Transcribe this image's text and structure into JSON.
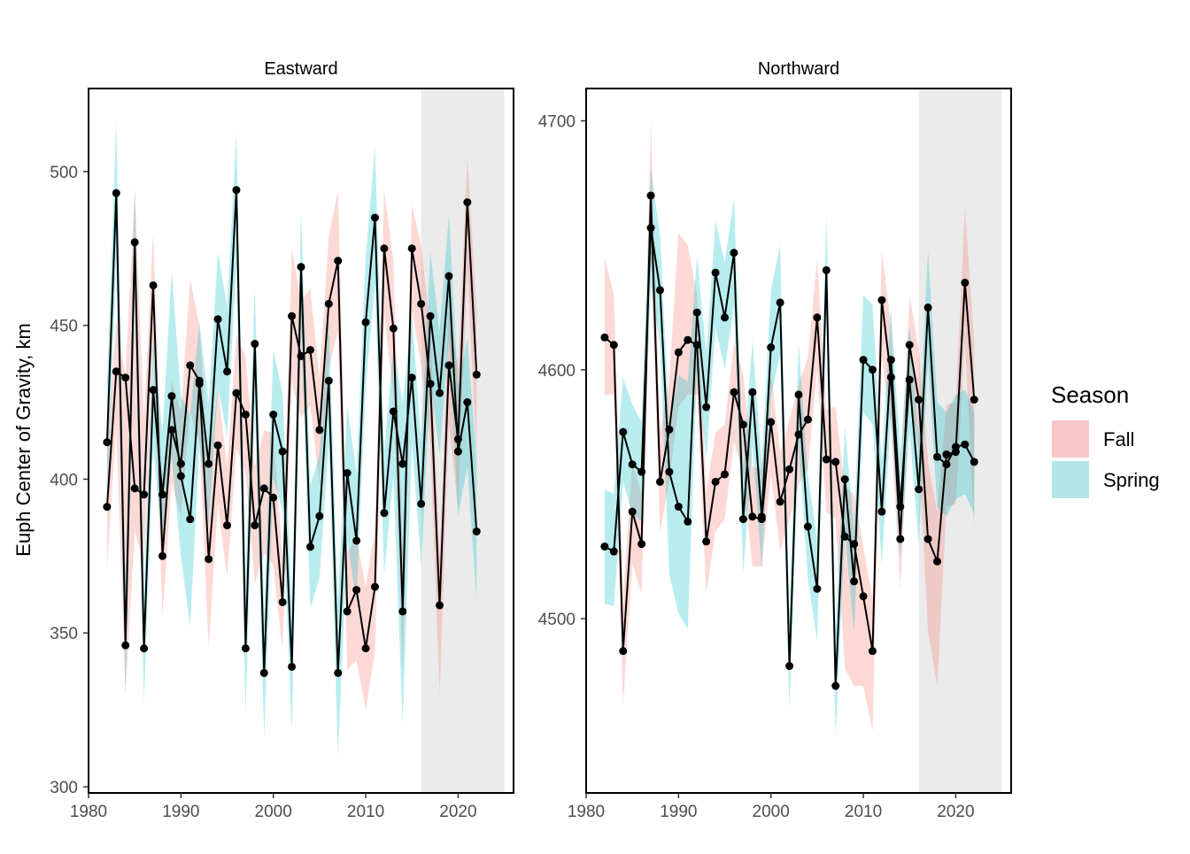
{
  "y_axis_label": "Euph Center of Gravity, km",
  "legend": {
    "title": "Season",
    "position": "right",
    "entries": [
      {
        "label": "Fall",
        "color": "#F8C7C7"
      },
      {
        "label": "Spring",
        "color": "#B4E4E6"
      }
    ]
  },
  "colors": {
    "fall_ribbon": "#F8766D",
    "spring_ribbon": "#00BFC4",
    "line": "#000000",
    "highlight_band": "#EBEBEB"
  },
  "chart_data": [
    {
      "type": "line",
      "title": "Eastward",
      "xlabel": "",
      "ylabel": "Euph Center of Gravity, km",
      "xlim": [
        1980,
        2026
      ],
      "ylim": [
        298,
        527
      ],
      "x_ticks": [
        1980,
        1990,
        2000,
        2010,
        2020
      ],
      "y_ticks": [
        300,
        350,
        400,
        450,
        500
      ],
      "grid": false,
      "highlight_band": [
        2016,
        2025
      ],
      "series": [
        {
          "name": "Fall",
          "years": [
            1982,
            1983,
            1984,
            1985,
            1986,
            1987,
            1988,
            1989,
            1990,
            1991,
            1992,
            1993,
            1994,
            1995,
            1996,
            1997,
            1998,
            1999,
            2000,
            2001,
            2002,
            2003,
            2004,
            2005,
            2006,
            2007,
            2008,
            2009,
            2010,
            2011,
            2012,
            2013,
            2014,
            2015,
            2016,
            2017,
            2018,
            2019,
            2020,
            2021,
            2022
          ],
          "values": [
            391,
            435,
            433,
            397,
            395,
            463,
            375,
            416,
            405,
            437,
            432,
            374,
            411,
            385,
            428,
            421,
            385,
            397,
            394,
            360,
            453,
            440,
            442,
            416,
            457,
            471,
            357,
            364,
            345,
            365,
            475,
            449,
            357,
            475,
            457,
            431,
            359,
            437,
            413,
            490,
            434
          ],
          "lower": [
            371,
            417,
            330,
            383,
            372,
            443,
            355,
            399,
            388,
            422,
            412,
            345,
            392,
            368,
            410,
            402,
            366,
            376,
            372,
            344,
            431,
            420,
            424,
            398,
            436,
            448,
            338,
            341,
            325,
            344,
            454,
            427,
            337,
            455,
            437,
            411,
            330,
            418,
            390,
            468,
            407
          ],
          "upper": [
            410,
            452,
            434,
            494,
            420,
            481,
            392,
            432,
            422,
            465,
            450,
            404,
            430,
            404,
            447,
            440,
            404,
            416,
            415,
            374,
            475,
            458,
            462,
            433,
            479,
            494,
            376,
            381,
            365,
            384,
            494,
            471,
            377,
            489,
            476,
            448,
            375,
            456,
            436,
            505,
            455
          ]
        },
        {
          "name": "Spring",
          "years": [
            1982,
            1983,
            1984,
            1985,
            1986,
            1987,
            1988,
            1989,
            1990,
            1991,
            1992,
            1993,
            1994,
            1995,
            1996,
            1997,
            1998,
            1999,
            2000,
            2001,
            2002,
            2003,
            2004,
            2005,
            2006,
            2007,
            2008,
            2009,
            2010,
            2011,
            2012,
            2013,
            2014,
            2015,
            2016,
            2017,
            2018,
            2019,
            2020,
            2021,
            2022
          ],
          "values": [
            412,
            493,
            346,
            477,
            345,
            429,
            395,
            427,
            401,
            387,
            431,
            405,
            452,
            435,
            494,
            345,
            444,
            337,
            421,
            409,
            339,
            469,
            378,
            388,
            432,
            337,
            402,
            380,
            451,
            485,
            389,
            422,
            405,
            433,
            392,
            453,
            428,
            466,
            409,
            425,
            383
          ],
          "lower": [
            392,
            470,
            330,
            459,
            327,
            411,
            377,
            408,
            375,
            352,
            411,
            385,
            430,
            414,
            470,
            323,
            425,
            316,
            400,
            390,
            318,
            450,
            358,
            368,
            412,
            310,
            380,
            360,
            430,
            463,
            369,
            401,
            320,
            412,
            372,
            432,
            408,
            446,
            388,
            404,
            360
          ],
          "upper": [
            432,
            516,
            366,
            495,
            365,
            447,
            415,
            468,
            427,
            421,
            451,
            425,
            474,
            456,
            513,
            367,
            463,
            357,
            442,
            428,
            360,
            487,
            398,
            408,
            452,
            360,
            424,
            402,
            472,
            508,
            409,
            443,
            425,
            454,
            412,
            474,
            448,
            486,
            430,
            446,
            406
          ]
        }
      ]
    },
    {
      "type": "line",
      "title": "Northward",
      "xlabel": "",
      "ylabel": "",
      "xlim": [
        1980,
        2026
      ],
      "ylim": [
        4430,
        4713
      ],
      "x_ticks": [
        1980,
        1990,
        2000,
        2010,
        2020
      ],
      "y_ticks": [
        4500,
        4600,
        4700
      ],
      "grid": false,
      "highlight_band": [
        2016,
        2025
      ],
      "series": [
        {
          "name": "Fall",
          "years": [
            1982,
            1983,
            1984,
            1985,
            1986,
            1987,
            1988,
            1989,
            1990,
            1991,
            1992,
            1993,
            1994,
            1995,
            1996,
            1997,
            1998,
            1999,
            2000,
            2001,
            2002,
            2003,
            2004,
            2005,
            2006,
            2007,
            2008,
            2009,
            2010,
            2011,
            2012,
            2013,
            2014,
            2015,
            2016,
            2017,
            2018,
            2019,
            2020,
            2021,
            2022
          ],
          "values": [
            4613,
            4610,
            4487,
            4543,
            4530,
            4670,
            4555,
            4576,
            4607,
            4612,
            4610,
            4531,
            4555,
            4558,
            4591,
            4578,
            4541,
            4540,
            4579,
            4547,
            4560,
            4574,
            4580,
            4621,
            4564,
            4563,
            4533,
            4530,
            4509,
            4487,
            4628,
            4597,
            4532,
            4610,
            4588,
            4532,
            4523,
            4566,
            4567,
            4635,
            4588
          ],
          "lower": [
            4590,
            4590,
            4465,
            4522,
            4510,
            4645,
            4535,
            4555,
            4585,
            4590,
            4590,
            4510,
            4535,
            4540,
            4571,
            4558,
            4521,
            4521,
            4558,
            4527,
            4540,
            4554,
            4560,
            4600,
            4543,
            4540,
            4480,
            4473,
            4473,
            4455,
            4605,
            4576,
            4512,
            4589,
            4568,
            4495,
            4473,
            4545,
            4546,
            4612,
            4535
          ],
          "upper": [
            4645,
            4630,
            4508,
            4563,
            4550,
            4700,
            4575,
            4596,
            4655,
            4650,
            4630,
            4551,
            4575,
            4578,
            4611,
            4598,
            4561,
            4560,
            4599,
            4567,
            4580,
            4594,
            4605,
            4645,
            4584,
            4585,
            4553,
            4550,
            4529,
            4508,
            4648,
            4618,
            4552,
            4630,
            4608,
            4563,
            4543,
            4586,
            4587,
            4665,
            4611
          ]
        },
        {
          "name": "Spring",
          "years": [
            1982,
            1983,
            1984,
            1985,
            1986,
            1987,
            1988,
            1989,
            1990,
            1991,
            1992,
            1993,
            1994,
            1995,
            1996,
            1997,
            1998,
            1999,
            2000,
            2001,
            2002,
            2003,
            2004,
            2005,
            2006,
            2007,
            2008,
            2009,
            2010,
            2011,
            2012,
            2013,
            2014,
            2015,
            2016,
            2017,
            2018,
            2019,
            2020,
            2021,
            2022
          ],
          "values": [
            4529,
            4527,
            4575,
            4562,
            4559,
            4657,
            4632,
            4559,
            4545,
            4539,
            4623,
            4585,
            4639,
            4621,
            4647,
            4540,
            4591,
            4541,
            4609,
            4627,
            4481,
            4590,
            4537,
            4512,
            4640,
            4473,
            4556,
            4515,
            4604,
            4600,
            4543,
            4604,
            4545,
            4596,
            4552,
            4625,
            4565,
            4562,
            4569,
            4570,
            4563
          ],
          "lower": [
            4506,
            4505,
            4555,
            4542,
            4539,
            4634,
            4610,
            4518,
            4502,
            4496,
            4600,
            4564,
            4617,
            4600,
            4626,
            4518,
            4570,
            4520,
            4589,
            4606,
            4462,
            4570,
            4516,
            4491,
            4620,
            4452,
            4535,
            4494,
            4583,
            4578,
            4522,
            4582,
            4524,
            4575,
            4530,
            4603,
            4545,
            4541,
            4548,
            4550,
            4542
          ],
          "upper": [
            4552,
            4550,
            4597,
            4586,
            4579,
            4681,
            4654,
            4578,
            4598,
            4595,
            4646,
            4607,
            4660,
            4643,
            4669,
            4561,
            4612,
            4562,
            4632,
            4650,
            4502,
            4611,
            4558,
            4532,
            4662,
            4495,
            4577,
            4536,
            4630,
            4626,
            4563,
            4625,
            4566,
            4618,
            4573,
            4648,
            4587,
            4583,
            4590,
            4592,
            4583
          ]
        }
      ]
    }
  ]
}
